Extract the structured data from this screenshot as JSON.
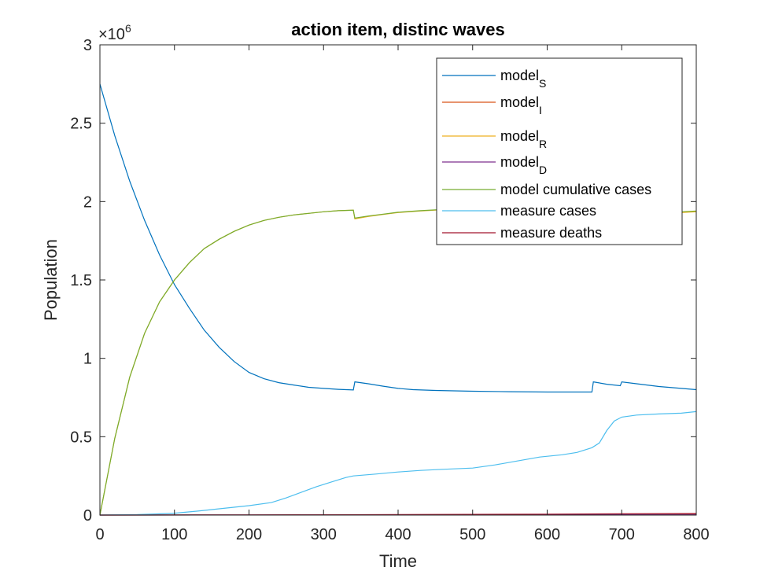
{
  "chart_data": {
    "type": "line",
    "title": "action item, distinc waves",
    "xlabel": "Time",
    "ylabel": "Population",
    "xlim": [
      0,
      800
    ],
    "ylim": [
      0,
      3000000
    ],
    "x_ticks": [
      0,
      100,
      200,
      300,
      400,
      500,
      600,
      700,
      800
    ],
    "x_tick_labels": [
      "0",
      "100",
      "200",
      "300",
      "400",
      "500",
      "600",
      "700",
      "800"
    ],
    "y_ticks": [
      0,
      500000,
      1000000,
      1500000,
      2000000,
      2500000,
      3000000
    ],
    "y_tick_labels": [
      "0",
      "0.5",
      "1",
      "1.5",
      "2",
      "2.5",
      "3"
    ],
    "y_exponent_label": {
      "base": "×10",
      "power": "6"
    },
    "grid": false,
    "legend_position": "top-right",
    "series": [
      {
        "name": "model",
        "sub": "S",
        "color": "#0072BD",
        "points": [
          [
            0,
            2750000
          ],
          [
            20,
            2420000
          ],
          [
            40,
            2130000
          ],
          [
            60,
            1880000
          ],
          [
            80,
            1660000
          ],
          [
            100,
            1470000
          ],
          [
            120,
            1320000
          ],
          [
            140,
            1180000
          ],
          [
            160,
            1070000
          ],
          [
            180,
            980000
          ],
          [
            200,
            910000
          ],
          [
            220,
            870000
          ],
          [
            240,
            845000
          ],
          [
            260,
            830000
          ],
          [
            280,
            815000
          ],
          [
            300,
            808000
          ],
          [
            320,
            802000
          ],
          [
            340,
            798000
          ],
          [
            342,
            850000
          ],
          [
            360,
            838000
          ],
          [
            380,
            822000
          ],
          [
            400,
            808000
          ],
          [
            420,
            800000
          ],
          [
            450,
            795000
          ],
          [
            500,
            790000
          ],
          [
            550,
            787000
          ],
          [
            600,
            785000
          ],
          [
            640,
            785000
          ],
          [
            660,
            785000
          ],
          [
            662,
            850000
          ],
          [
            680,
            835000
          ],
          [
            698,
            825000
          ],
          [
            700,
            850000
          ],
          [
            720,
            838000
          ],
          [
            750,
            820000
          ],
          [
            780,
            808000
          ],
          [
            800,
            800000
          ]
        ]
      },
      {
        "name": "model",
        "sub": "I",
        "color": "#D95319",
        "points": [
          [
            0,
            0
          ],
          [
            200,
            1000
          ],
          [
            400,
            2000
          ],
          [
            600,
            3000
          ],
          [
            800,
            4000
          ]
        ]
      },
      {
        "name": "model",
        "sub": "R",
        "color": "#EDB120",
        "points": [
          [
            0,
            0
          ],
          [
            20,
            490000
          ],
          [
            40,
            880000
          ],
          [
            60,
            1160000
          ],
          [
            80,
            1360000
          ],
          [
            100,
            1500000
          ],
          [
            120,
            1610000
          ],
          [
            140,
            1700000
          ],
          [
            160,
            1760000
          ],
          [
            180,
            1810000
          ],
          [
            200,
            1850000
          ],
          [
            220,
            1880000
          ],
          [
            240,
            1900000
          ],
          [
            260,
            1915000
          ],
          [
            280,
            1925000
          ],
          [
            300,
            1935000
          ],
          [
            320,
            1942000
          ],
          [
            340,
            1945000
          ],
          [
            342,
            1890000
          ],
          [
            360,
            1905000
          ],
          [
            380,
            1918000
          ],
          [
            400,
            1930000
          ],
          [
            430,
            1940000
          ],
          [
            460,
            1948000
          ],
          [
            500,
            1950000
          ],
          [
            780,
            1930000
          ],
          [
            800,
            1935000
          ]
        ]
      },
      {
        "name": "model",
        "sub": "D",
        "color": "#7E2F8E",
        "points": [
          [
            0,
            0
          ],
          [
            200,
            1000
          ],
          [
            400,
            1500
          ],
          [
            600,
            2000
          ],
          [
            800,
            2500
          ]
        ]
      },
      {
        "name": "model cumulative cases",
        "sub": "",
        "color": "#77AC30",
        "points": [
          [
            0,
            0
          ],
          [
            20,
            490000
          ],
          [
            40,
            880000
          ],
          [
            60,
            1160000
          ],
          [
            80,
            1360000
          ],
          [
            100,
            1500000
          ],
          [
            120,
            1610000
          ],
          [
            140,
            1700000
          ],
          [
            160,
            1760000
          ],
          [
            180,
            1810000
          ],
          [
            200,
            1850000
          ],
          [
            220,
            1880000
          ],
          [
            240,
            1900000
          ],
          [
            260,
            1915000
          ],
          [
            280,
            1925000
          ],
          [
            300,
            1935000
          ],
          [
            320,
            1942000
          ],
          [
            340,
            1945000
          ],
          [
            342,
            1895000
          ],
          [
            360,
            1908000
          ],
          [
            380,
            1920000
          ],
          [
            400,
            1932000
          ],
          [
            430,
            1942000
          ],
          [
            460,
            1950000
          ],
          [
            500,
            1952000
          ],
          [
            780,
            1935000
          ],
          [
            800,
            1940000
          ]
        ]
      },
      {
        "name": "measure cases",
        "sub": "",
        "color": "#4DBEEE",
        "points": [
          [
            0,
            0
          ],
          [
            50,
            3000
          ],
          [
            80,
            8000
          ],
          [
            100,
            12000
          ],
          [
            130,
            25000
          ],
          [
            160,
            40000
          ],
          [
            200,
            60000
          ],
          [
            230,
            80000
          ],
          [
            250,
            110000
          ],
          [
            270,
            145000
          ],
          [
            290,
            180000
          ],
          [
            310,
            210000
          ],
          [
            330,
            240000
          ],
          [
            340,
            250000
          ],
          [
            370,
            262000
          ],
          [
            400,
            275000
          ],
          [
            430,
            285000
          ],
          [
            460,
            292000
          ],
          [
            500,
            300000
          ],
          [
            530,
            320000
          ],
          [
            560,
            345000
          ],
          [
            590,
            370000
          ],
          [
            620,
            385000
          ],
          [
            640,
            400000
          ],
          [
            660,
            430000
          ],
          [
            670,
            460000
          ],
          [
            680,
            540000
          ],
          [
            690,
            600000
          ],
          [
            700,
            625000
          ],
          [
            720,
            638000
          ],
          [
            750,
            645000
          ],
          [
            780,
            650000
          ],
          [
            800,
            660000
          ]
        ]
      },
      {
        "name": "measure deaths",
        "sub": "",
        "color": "#A2142F",
        "points": [
          [
            0,
            0
          ],
          [
            200,
            1000
          ],
          [
            400,
            3000
          ],
          [
            600,
            6000
          ],
          [
            700,
            8000
          ],
          [
            800,
            10000
          ]
        ]
      }
    ]
  }
}
